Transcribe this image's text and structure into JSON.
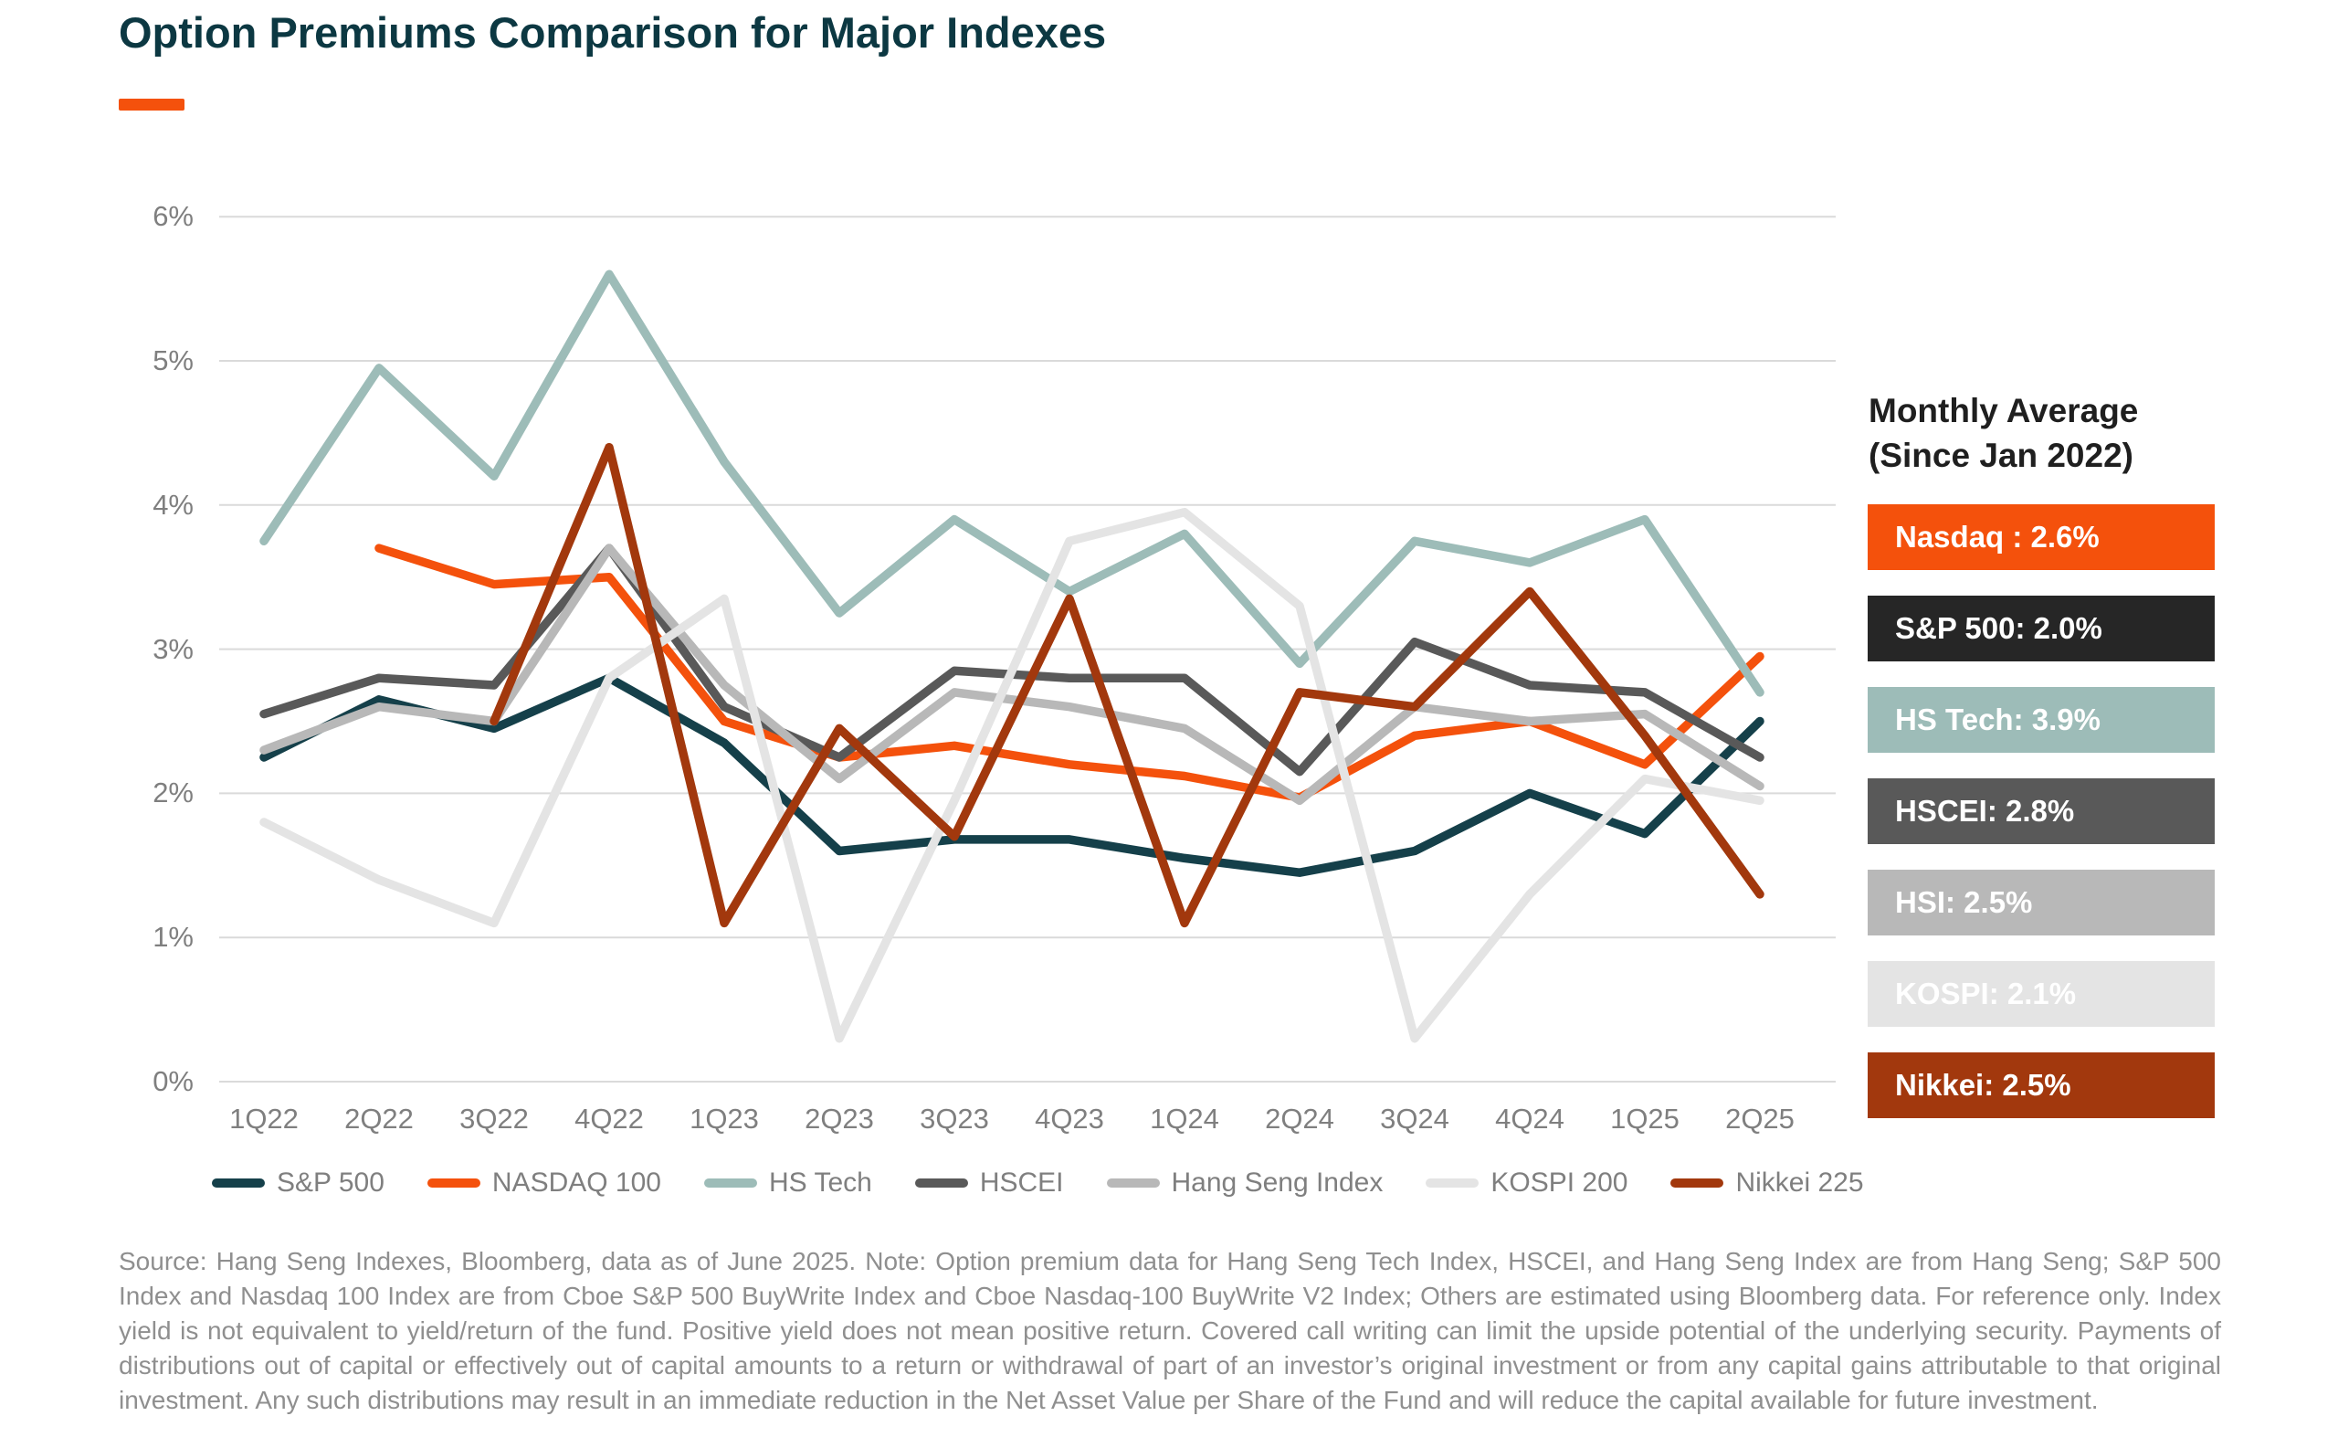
{
  "title": "Option Premiums Comparison for Major Indexes",
  "accent_color": "#f4510c",
  "side_panel": {
    "heading_line1": "Monthly Average",
    "heading_line2": "(Since Jan 2022)",
    "badges": [
      {
        "label": "Nasdaq : 2.6%",
        "bg": "#f4510c",
        "fg": "#ffffff"
      },
      {
        "label": "S&P 500: 2.0%",
        "bg": "#262626",
        "fg": "#ffffff"
      },
      {
        "label": "HS Tech: 3.9%",
        "bg": "#9dbcb8",
        "fg": "#ffffff"
      },
      {
        "label": "HSCEI: 2.8%",
        "bg": "#595959",
        "fg": "#ffffff"
      },
      {
        "label": "HSI: 2.5%",
        "bg": "#b8b8b8",
        "fg": "#ffffff"
      },
      {
        "label": "KOSPI: 2.1%",
        "bg": "#e4e4e4",
        "fg": "#ffffff"
      },
      {
        "label": "Nikkei: 2.5%",
        "bg": "#a2380d",
        "fg": "#ffffff"
      }
    ]
  },
  "chart_data": {
    "type": "line",
    "title": "Option Premiums Comparison for Major Indexes",
    "categories": [
      "1Q22",
      "2Q22",
      "3Q22",
      "4Q22",
      "1Q23",
      "2Q23",
      "3Q23",
      "4Q23",
      "1Q24",
      "2Q24",
      "3Q24",
      "4Q24",
      "1Q25",
      "2Q25"
    ],
    "series": [
      {
        "name": "S&P 500",
        "color": "#15404a",
        "values": [
          2.25,
          2.65,
          2.45,
          2.8,
          2.35,
          1.6,
          1.68,
          1.68,
          1.55,
          1.45,
          1.6,
          2.0,
          1.72,
          2.5
        ]
      },
      {
        "name": "NASDAQ 100",
        "color": "#f4510c",
        "values": [
          null,
          3.7,
          3.45,
          3.5,
          2.5,
          2.25,
          2.33,
          2.2,
          2.12,
          1.97,
          2.4,
          2.5,
          2.2,
          2.95
        ]
      },
      {
        "name": "HS Tech",
        "color": "#9dbcb8",
        "values": [
          3.75,
          4.95,
          4.2,
          5.6,
          4.3,
          3.25,
          3.9,
          3.4,
          3.8,
          2.9,
          3.75,
          3.6,
          3.9,
          2.7
        ]
      },
      {
        "name": "HSCEI",
        "color": "#595959",
        "values": [
          2.55,
          2.8,
          2.75,
          3.7,
          2.6,
          2.25,
          2.85,
          2.8,
          2.8,
          2.15,
          3.05,
          2.75,
          2.7,
          2.25
        ]
      },
      {
        "name": "Hang Seng Index",
        "color": "#b8b8b8",
        "values": [
          2.3,
          2.6,
          2.5,
          3.7,
          2.75,
          2.1,
          2.7,
          2.6,
          2.45,
          1.95,
          2.6,
          2.5,
          2.55,
          2.05
        ]
      },
      {
        "name": "KOSPI 200",
        "color": "#e4e4e4",
        "values": [
          1.8,
          1.4,
          1.1,
          2.8,
          3.35,
          0.3,
          1.95,
          3.75,
          3.95,
          3.3,
          0.3,
          1.3,
          2.1,
          1.95
        ]
      },
      {
        "name": "Nikkei 225",
        "color": "#a2380d",
        "values": [
          null,
          null,
          2.5,
          4.4,
          1.1,
          2.45,
          1.7,
          3.35,
          1.1,
          2.7,
          2.6,
          3.4,
          2.4,
          1.3
        ]
      }
    ],
    "ylim": [
      0,
      6
    ],
    "yticks": [
      0,
      1,
      2,
      3,
      4,
      5,
      6
    ],
    "ytick_labels": [
      "0%",
      "1%",
      "2%",
      "3%",
      "4%",
      "5%",
      "6%"
    ],
    "xlabel": "",
    "ylabel": "",
    "grid": true,
    "legend_position": "bottom"
  },
  "footnote": "Source: Hang Seng Indexes, Bloomberg, data as of June 2025. Note: Option premium data for Hang Seng Tech Index, HSCEI, and Hang Seng Index are from Hang Seng; S&P 500 Index and Nasdaq 100 Index are from Cboe S&P 500 BuyWrite Index and Cboe Nasdaq-100 BuyWrite V2 Index; Others are estimated using Bloomberg data. For reference only. Index yield is not equivalent to yield/return of the fund. Positive yield does not mean positive return. Covered call writing can limit the upside potential of the underlying security. Payments of distributions out of capital or effectively out of capital amounts to a return or withdrawal of part of an investor’s original investment or from any capital gains attributable to that original investment. Any such distributions may result in an immediate reduction in the Net Asset Value per Share of the Fund and will reduce the capital available for future investment."
}
